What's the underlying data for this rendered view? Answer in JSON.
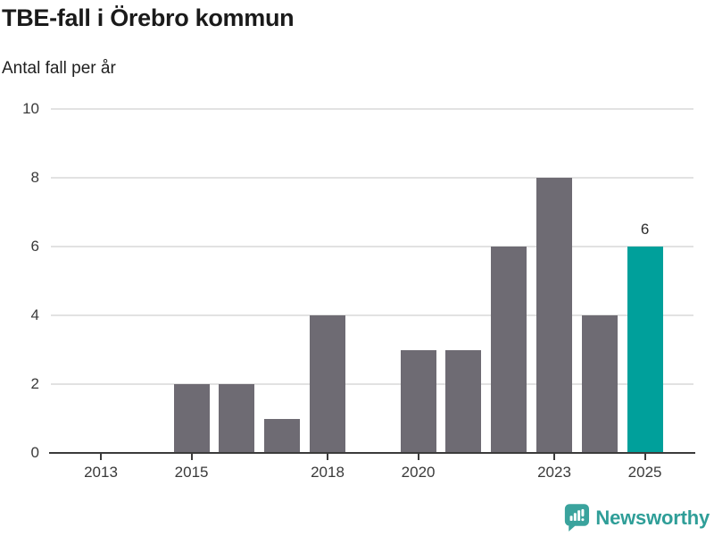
{
  "header": {
    "title": "TBE-fall i Örebro kommun",
    "subtitle": "Antal fall per år"
  },
  "chart_data": {
    "type": "bar",
    "title": "TBE-fall i Örebro kommun",
    "subtitle": "Antal fall per år",
    "categories": [
      "2013",
      "2014",
      "2015",
      "2016",
      "2017",
      "2018",
      "2019",
      "2020",
      "2021",
      "2022",
      "2023",
      "2024",
      "2025"
    ],
    "values": [
      0,
      0,
      2,
      2,
      1,
      4,
      0,
      3,
      3,
      6,
      8,
      4,
      6
    ],
    "bar_label": {
      "index": 12,
      "text": "6"
    },
    "highlight_index": 12,
    "ylim": [
      0,
      10
    ],
    "yticks": [
      0,
      2,
      4,
      6,
      8,
      10
    ],
    "xtick_labels": [
      "2013",
      "2015",
      "2018",
      "2020",
      "2023",
      "2025"
    ],
    "grid": "horizontal",
    "legend": "none",
    "colors": {
      "bar": "#6e6b73",
      "highlight": "#00a09b",
      "grid": "#e2e2e2",
      "axis": "#3b3b3b",
      "tick_text": "#3a3a3a"
    }
  },
  "footer": {
    "brand": "Newsworthy",
    "brand_color": "#2f9e98",
    "logo_icon": "newsworthy-speech-bubble-chart-icon",
    "logo_color": "#3aa39d"
  }
}
